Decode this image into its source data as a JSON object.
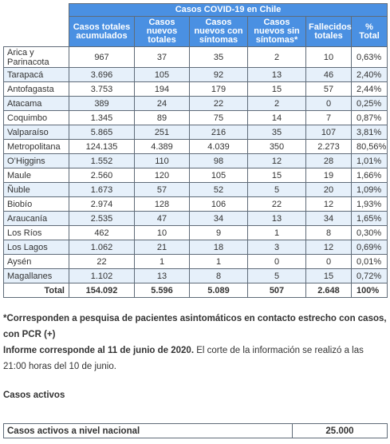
{
  "table": {
    "title": "Casos COVID-19 en Chile",
    "headers": [
      "Casos totales acumulados",
      "Casos nuevos totales",
      "Casos nuevos con síntomas",
      "Casos nuevos sin síntomas*",
      "Fallecidos totales",
      "% Total"
    ],
    "rows": [
      {
        "region": "Arica y Parinacota",
        "acumulados": "967",
        "nuevos": "37",
        "con_sintomas": "35",
        "sin_sintomas": "2",
        "fallecidos": "10",
        "pct": "0,63%"
      },
      {
        "region": "Tarapacá",
        "acumulados": "3.696",
        "nuevos": "105",
        "con_sintomas": "92",
        "sin_sintomas": "13",
        "fallecidos": "46",
        "pct": "2,40%"
      },
      {
        "region": "Antofagasta",
        "acumulados": "3.753",
        "nuevos": "194",
        "con_sintomas": "179",
        "sin_sintomas": "15",
        "fallecidos": "57",
        "pct": "2,44%"
      },
      {
        "region": "Atacama",
        "acumulados": "389",
        "nuevos": "24",
        "con_sintomas": "22",
        "sin_sintomas": "2",
        "fallecidos": "0",
        "pct": "0,25%"
      },
      {
        "region": "Coquimbo",
        "acumulados": "1.345",
        "nuevos": "89",
        "con_sintomas": "75",
        "sin_sintomas": "14",
        "fallecidos": "7",
        "pct": "0,87%"
      },
      {
        "region": "Valparaíso",
        "acumulados": "5.865",
        "nuevos": "251",
        "con_sintomas": "216",
        "sin_sintomas": "35",
        "fallecidos": "107",
        "pct": "3,81%"
      },
      {
        "region": "Metropolitana",
        "acumulados": "124.135",
        "nuevos": "4.389",
        "con_sintomas": "4.039",
        "sin_sintomas": "350",
        "fallecidos": "2.273",
        "pct": "80,56%"
      },
      {
        "region": "O’Higgins",
        "acumulados": "1.552",
        "nuevos": "110",
        "con_sintomas": "98",
        "sin_sintomas": "12",
        "fallecidos": "28",
        "pct": "1,01%"
      },
      {
        "region": "Maule",
        "acumulados": "2.560",
        "nuevos": "120",
        "con_sintomas": "105",
        "sin_sintomas": "15",
        "fallecidos": "19",
        "pct": "1,66%"
      },
      {
        "region": "Ñuble",
        "acumulados": "1.673",
        "nuevos": "57",
        "con_sintomas": "52",
        "sin_sintomas": "5",
        "fallecidos": "20",
        "pct": "1,09%"
      },
      {
        "region": "Biobío",
        "acumulados": "2.974",
        "nuevos": "128",
        "con_sintomas": "106",
        "sin_sintomas": "22",
        "fallecidos": "12",
        "pct": "1,93%"
      },
      {
        "region": "Araucanía",
        "acumulados": "2.535",
        "nuevos": "47",
        "con_sintomas": "34",
        "sin_sintomas": "13",
        "fallecidos": "34",
        "pct": "1,65%"
      },
      {
        "region": "Los Ríos",
        "acumulados": "462",
        "nuevos": "10",
        "con_sintomas": "9",
        "sin_sintomas": "1",
        "fallecidos": "8",
        "pct": "0,30%"
      },
      {
        "region": "Los Lagos",
        "acumulados": "1.062",
        "nuevos": "21",
        "con_sintomas": "18",
        "sin_sintomas": "3",
        "fallecidos": "12",
        "pct": "0,69%"
      },
      {
        "region": "Aysén",
        "acumulados": "22",
        "nuevos": "1",
        "con_sintomas": "1",
        "sin_sintomas": "0",
        "fallecidos": "0",
        "pct": "0,01%"
      },
      {
        "region": "Magallanes",
        "acumulados": "1.102",
        "nuevos": "13",
        "con_sintomas": "8",
        "sin_sintomas": "5",
        "fallecidos": "15",
        "pct": "0,72%"
      }
    ],
    "total": {
      "label": "Total",
      "acumulados": "154.092",
      "nuevos": "5.596",
      "con_sintomas": "5.089",
      "sin_sintomas": "507",
      "fallecidos": "2.648",
      "pct": "100%"
    }
  },
  "notes": {
    "asterisk": "*Corresponden a pesquisa de pacientes asintomáticos en contacto estrecho con casos, con PCR (+)",
    "informe_bold": "Informe corresponde al 11 de junio de 2020.",
    "informe_rest": " El corte de la información se realizó a las 21:00 horas del 10 de junio."
  },
  "activos": {
    "heading": "Casos activos",
    "label": "Casos activos a nivel nacional",
    "value": "25.000"
  },
  "colors": {
    "header_blue": "#4a90e2",
    "zebra_light_blue": "#e6f0fa",
    "border_gray": "#5f6b78"
  }
}
